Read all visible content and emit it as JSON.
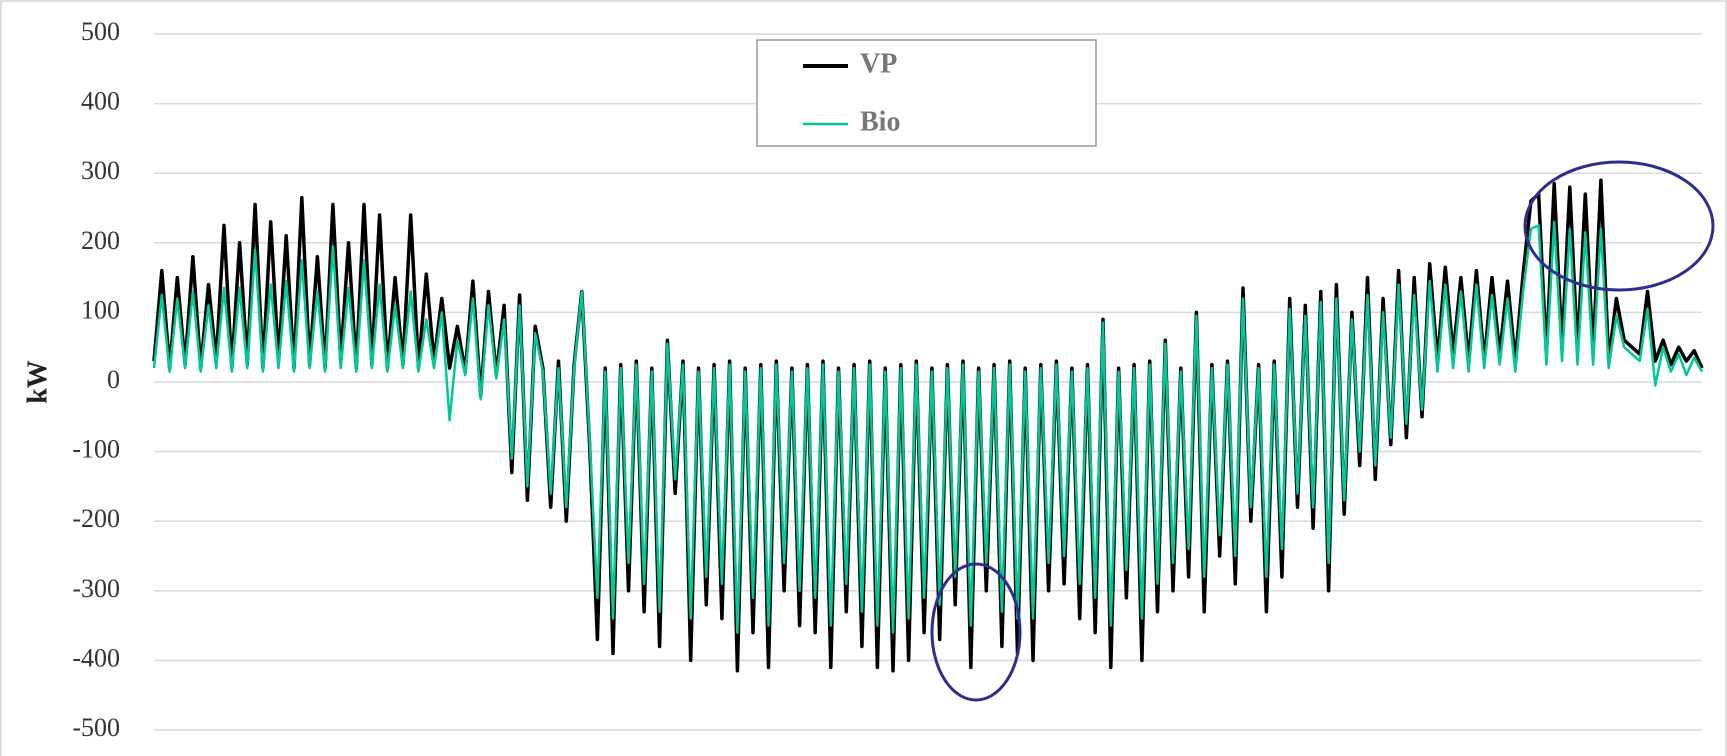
{
  "chart_data": {
    "type": "line",
    "ylabel": "kW",
    "ylim": [
      -500,
      500
    ],
    "yticks": [
      -500,
      -400,
      -300,
      -200,
      -100,
      0,
      100,
      200,
      300,
      400,
      500
    ],
    "grid": true,
    "legend": "top",
    "series": [
      {
        "name": "VP",
        "color": "#000000",
        "values": [
          30,
          160,
          20,
          150,
          25,
          180,
          20,
          140,
          30,
          225,
          20,
          200,
          25,
          255,
          20,
          230,
          30,
          210,
          20,
          265,
          25,
          180,
          20,
          255,
          30,
          200,
          20,
          255,
          25,
          240,
          20,
          150,
          25,
          240,
          20,
          155,
          30,
          120,
          20,
          80,
          15,
          145,
          -20,
          130,
          10,
          110,
          -130,
          125,
          -170,
          80,
          20,
          -180,
          30,
          -200,
          25,
          130,
          -90,
          -370,
          20,
          -390,
          25,
          -300,
          30,
          -330,
          20,
          -380,
          60,
          -160,
          30,
          -400,
          20,
          -320,
          25,
          -340,
          30,
          -415,
          20,
          -360,
          25,
          -410,
          30,
          -300,
          20,
          -350,
          25,
          -360,
          30,
          -410,
          20,
          -330,
          25,
          -380,
          30,
          -410,
          20,
          -415,
          25,
          -400,
          30,
          -360,
          20,
          -370,
          25,
          -320,
          30,
          -410,
          20,
          -300,
          25,
          -380,
          30,
          -390,
          20,
          -400,
          25,
          -300,
          30,
          -290,
          20,
          -340,
          25,
          -360,
          90,
          -410,
          20,
          -310,
          25,
          -400,
          30,
          -330,
          60,
          -300,
          20,
          -280,
          100,
          -330,
          25,
          -250,
          30,
          -290,
          135,
          -200,
          25,
          -330,
          30,
          -280,
          120,
          -180,
          110,
          -210,
          130,
          -300,
          140,
          -190,
          100,
          -120,
          150,
          -140,
          120,
          -90,
          160,
          -80,
          150,
          -50,
          170,
          30,
          165,
          40,
          150,
          30,
          160,
          30,
          150,
          40,
          145,
          30,
          155,
          260,
          270,
          40,
          285,
          50,
          280,
          45,
          270,
          40,
          290,
          30,
          120,
          60,
          50,
          40,
          130,
          30,
          60,
          25,
          50,
          30,
          45,
          20
        ]
      },
      {
        "name": "Bio",
        "color": "#00c896",
        "values": [
          20,
          125,
          15,
          120,
          20,
          130,
          15,
          110,
          20,
          135,
          15,
          135,
          20,
          190,
          15,
          140,
          20,
          145,
          15,
          175,
          20,
          130,
          15,
          195,
          20,
          135,
          15,
          175,
          20,
          140,
          15,
          110,
          20,
          130,
          15,
          90,
          20,
          100,
          -55,
          60,
          10,
          120,
          -25,
          110,
          5,
          90,
          -110,
          110,
          -150,
          70,
          15,
          -160,
          20,
          -180,
          20,
          130,
          -80,
          -310,
          15,
          -340,
          20,
          -260,
          25,
          -290,
          15,
          -330,
          55,
          -140,
          25,
          -340,
          15,
          -280,
          20,
          -290,
          25,
          -360,
          15,
          -310,
          20,
          -350,
          25,
          -260,
          15,
          -300,
          20,
          -310,
          25,
          -350,
          15,
          -290,
          20,
          -330,
          25,
          -350,
          15,
          -360,
          20,
          -340,
          25,
          -310,
          15,
          -320,
          20,
          -280,
          25,
          -350,
          15,
          -260,
          20,
          -330,
          25,
          -340,
          15,
          -340,
          20,
          -260,
          25,
          -250,
          15,
          -290,
          20,
          -310,
          85,
          -350,
          15,
          -270,
          20,
          -340,
          25,
          -290,
          55,
          -260,
          15,
          -240,
          95,
          -280,
          20,
          -220,
          25,
          -250,
          120,
          -180,
          20,
          -280,
          25,
          -240,
          105,
          -160,
          95,
          -180,
          115,
          -260,
          120,
          -170,
          90,
          -100,
          125,
          -120,
          100,
          -80,
          140,
          -60,
          125,
          -40,
          145,
          15,
          140,
          20,
          130,
          15,
          140,
          20,
          125,
          25,
          120,
          15,
          130,
          220,
          225,
          25,
          230,
          30,
          220,
          25,
          215,
          25,
          220,
          20,
          95,
          50,
          40,
          30,
          105,
          -5,
          50,
          15,
          40,
          10,
          35,
          15
        ]
      }
    ]
  }
}
